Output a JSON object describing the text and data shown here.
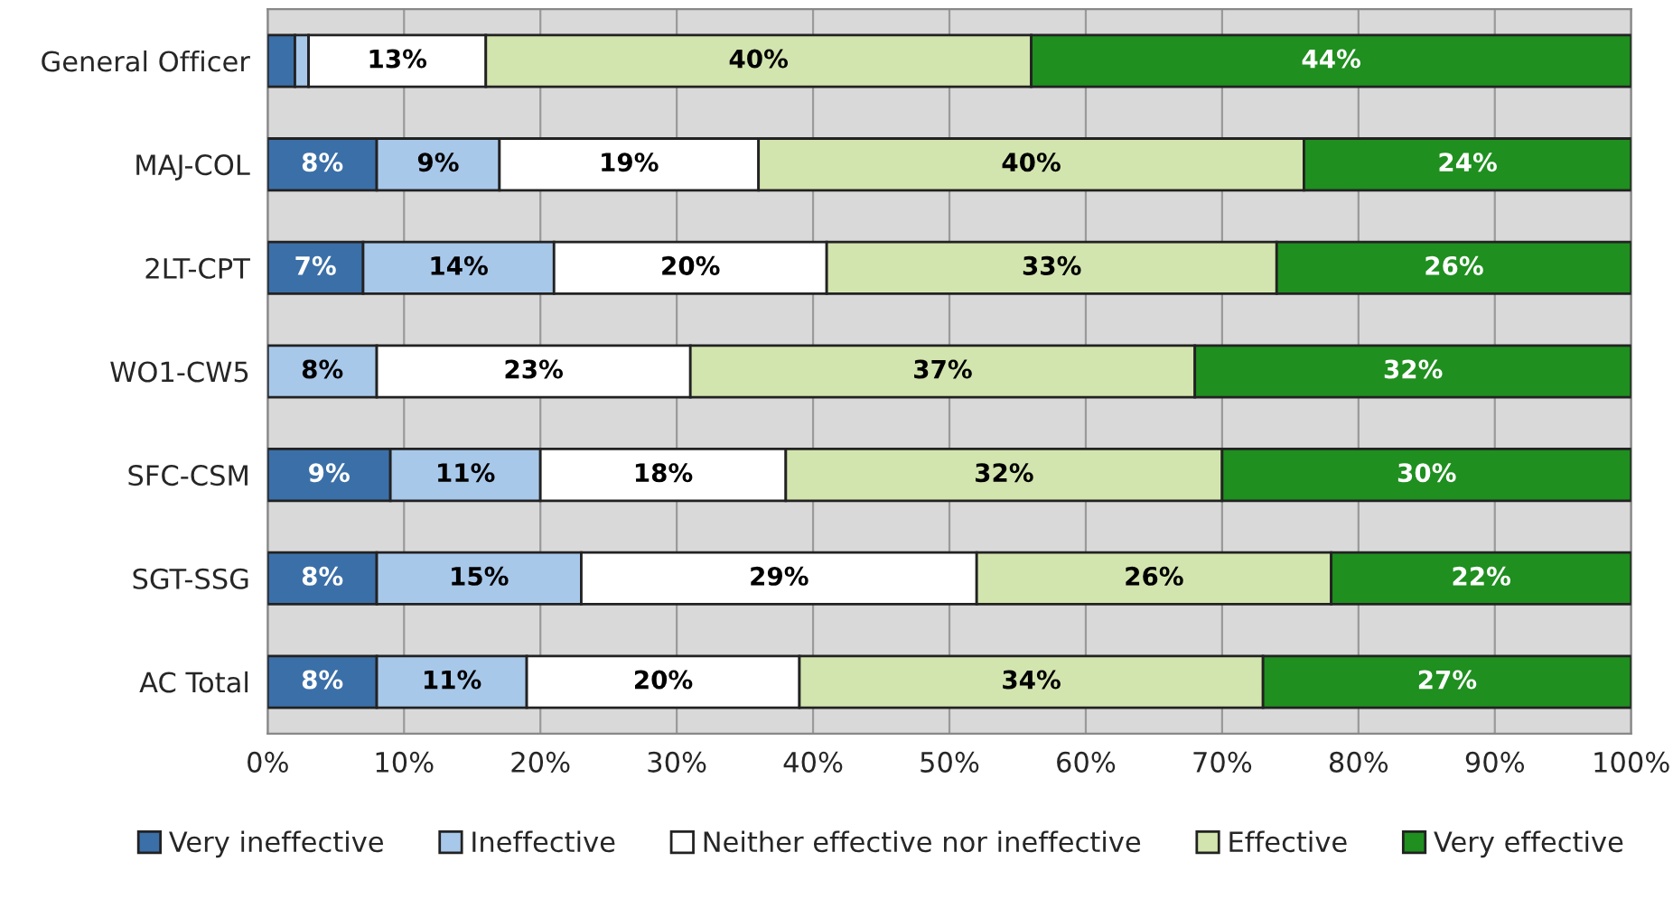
{
  "chart_data": {
    "type": "bar",
    "orientation": "horizontal",
    "stacked": true,
    "categories": [
      "General Officer",
      "MAJ-COL",
      "2LT-CPT",
      "WO1-CW5",
      "SFC-CSM",
      "SGT-SSG",
      "AC Total"
    ],
    "series": [
      {
        "name": "Very ineffective",
        "color": "#3b6fa8",
        "values": [
          2,
          8,
          7,
          0,
          9,
          8,
          8
        ],
        "value_labels": [
          null,
          "8%",
          "7%",
          null,
          "9%",
          "8%",
          "8%"
        ]
      },
      {
        "name": "Ineffective",
        "color": "#a8c8ea",
        "values": [
          1,
          9,
          14,
          8,
          11,
          15,
          11
        ],
        "value_labels": [
          null,
          "9%",
          "14%",
          "8%",
          "11%",
          "15%",
          "11%"
        ]
      },
      {
        "name": "Neither effective nor ineffective",
        "color": "#ffffff",
        "values": [
          13,
          19,
          20,
          23,
          18,
          29,
          20
        ],
        "value_labels": [
          "13%",
          "19%",
          "20%",
          "23%",
          "18%",
          "29%",
          "20%"
        ]
      },
      {
        "name": "Effective",
        "color": "#d3e5ae",
        "values": [
          40,
          40,
          33,
          37,
          32,
          26,
          34
        ],
        "value_labels": [
          "40%",
          "40%",
          "33%",
          "37%",
          "32%",
          "26%",
          "34%"
        ]
      },
      {
        "name": "Very effective",
        "color": "#1f8f1f",
        "values": [
          44,
          24,
          26,
          32,
          30,
          22,
          27
        ],
        "value_labels": [
          "44%",
          "24%",
          "26%",
          "32%",
          "30%",
          "22%",
          "27%"
        ]
      }
    ],
    "xlim": [
      0,
      100
    ],
    "xticks": [
      {
        "value": 0,
        "label": "0%"
      },
      {
        "value": 10,
        "label": "10%"
      },
      {
        "value": 20,
        "label": "20%"
      },
      {
        "value": 30,
        "label": "30%"
      },
      {
        "value": 40,
        "label": "40%"
      },
      {
        "value": 50,
        "label": "50%"
      },
      {
        "value": 60,
        "label": "60%"
      },
      {
        "value": 70,
        "label": "70%"
      },
      {
        "value": 80,
        "label": "80%"
      },
      {
        "value": 90,
        "label": "90%"
      },
      {
        "value": 100,
        "label": "100%"
      }
    ],
    "grid": "x",
    "legend": "bottom"
  }
}
